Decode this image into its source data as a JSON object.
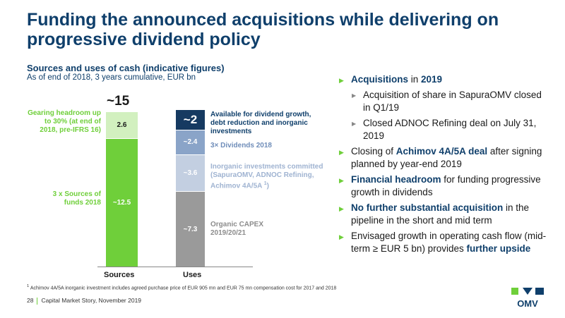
{
  "slide": {
    "title": "Funding the announced acquisitions while delivering on progressive dividend policy",
    "chart_title": "Sources and uses of cash (indicative figures)",
    "chart_subtitle": "As of end of 2018, 3 years cumulative, EUR bn",
    "footnote_marker": "1",
    "footnote": "Achimov 4A/5A inorganic investment includes agreed purchase price of EUR 905 mn and EUR 75 mn compensation cost for 2017 and 2018",
    "page_number": "28",
    "footer_text": "Capital Market Story, November 2019",
    "logo_text": "OMV"
  },
  "chart_data": {
    "type": "bar",
    "stacked": true,
    "categories": [
      "Sources",
      "Uses"
    ],
    "total_label": "~15",
    "sources": [
      {
        "label": "3 x Sources of funds 2018",
        "value": 12.5,
        "value_label": "~12.5",
        "color": "#6fcf3a"
      },
      {
        "label": "Gearing headroom up to 30% (at end of 2018, pre-IFRS 16)",
        "value": 2.6,
        "value_label": "2.6",
        "color": "#d2f0bf"
      }
    ],
    "uses": [
      {
        "label": "Organic CAPEX 2019/20/21",
        "value": 7.3,
        "value_label": "~7.3",
        "color": "#9a9a9a"
      },
      {
        "label": "Inorganic investments committed (SapuraOMV, ADNOC Refining, Achimov 4A/5A",
        "footnote": "1",
        "value": 3.6,
        "value_label": "~3.6",
        "color": "#c3cfe1"
      },
      {
        "label": "3× Dividends 2018",
        "value": 2.4,
        "value_label": "~2.4",
        "color": "#8aa4c8"
      },
      {
        "label": "Available for dividend growth, debt reduction and inorganic investments",
        "value": 2.0,
        "value_label": "~2",
        "color": "#163a61"
      }
    ],
    "colors": {
      "accent": "#6fcf3a",
      "navy": "#0f3f6b"
    }
  },
  "bullets": [
    {
      "level": 1,
      "parts": [
        {
          "t": "Acquisitions",
          "b": true
        },
        {
          "t": " in ",
          "b": false
        },
        {
          "t": "2019",
          "b": true
        }
      ]
    },
    {
      "level": 2,
      "parts": [
        {
          "t": "Acquisition of share in SapuraOMV closed in Q1/19",
          "b": false
        }
      ]
    },
    {
      "level": 2,
      "parts": [
        {
          "t": "Closed ADNOC Refining deal on July 31, 2019",
          "b": false
        }
      ]
    },
    {
      "level": 1,
      "parts": [
        {
          "t": "Closing of ",
          "b": false
        },
        {
          "t": "Achimov 4A/5A deal",
          "b": true
        },
        {
          "t": " after signing planned by year-end 2019",
          "b": false
        }
      ]
    },
    {
      "level": 1,
      "parts": [
        {
          "t": "Financial headroom",
          "b": true
        },
        {
          "t": " for funding progressive growth in dividends",
          "b": false
        }
      ]
    },
    {
      "level": 1,
      "parts": [
        {
          "t": "No further substantial acquisition",
          "b": true
        },
        {
          "t": " in the pipeline in the short and mid term",
          "b": false
        }
      ]
    },
    {
      "level": 1,
      "parts": [
        {
          "t": "Envisaged growth in operating cash flow (mid-term ≥ EUR 5 bn) provides ",
          "b": false
        },
        {
          "t": "further upside",
          "b": true
        }
      ]
    }
  ]
}
